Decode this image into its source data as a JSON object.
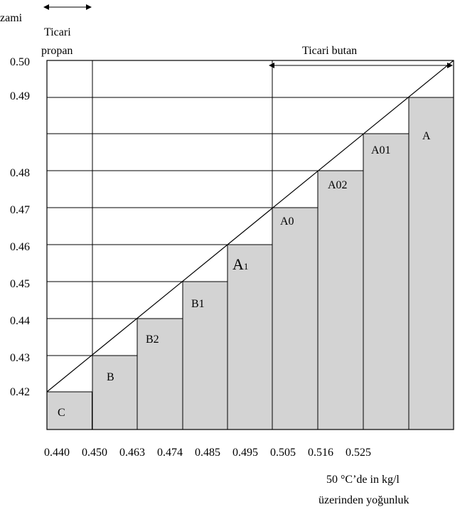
{
  "header": {
    "left_partial": "zami",
    "propan_line1": "Ticari",
    "propan_line2": "propan",
    "butan": "Ticari butan"
  },
  "y_ticks": [
    "0.50",
    "0.49",
    "0.48",
    "0.47",
    "0.46",
    "0.45",
    "0.44",
    "0.43",
    "0.42"
  ],
  "x_ticks": [
    "0.440",
    "0.450",
    "0.463",
    "0.474",
    "0.485",
    "0.495",
    "0.505",
    "0.516",
    "0.525"
  ],
  "footer": {
    "line1": "50 °C’de in kg/l",
    "line2": "üzerinden yoğunluk"
  },
  "steps": [
    {
      "label": "C"
    },
    {
      "label": "B"
    },
    {
      "label": "B2"
    },
    {
      "label": "B1"
    },
    {
      "label": "A",
      "label_sub": "1"
    },
    {
      "label": "A0"
    },
    {
      "label": "A02"
    },
    {
      "label": "A01"
    },
    {
      "label": "A"
    }
  ],
  "colors": {
    "fill": "#d3d3d3",
    "line": "#000000"
  }
}
